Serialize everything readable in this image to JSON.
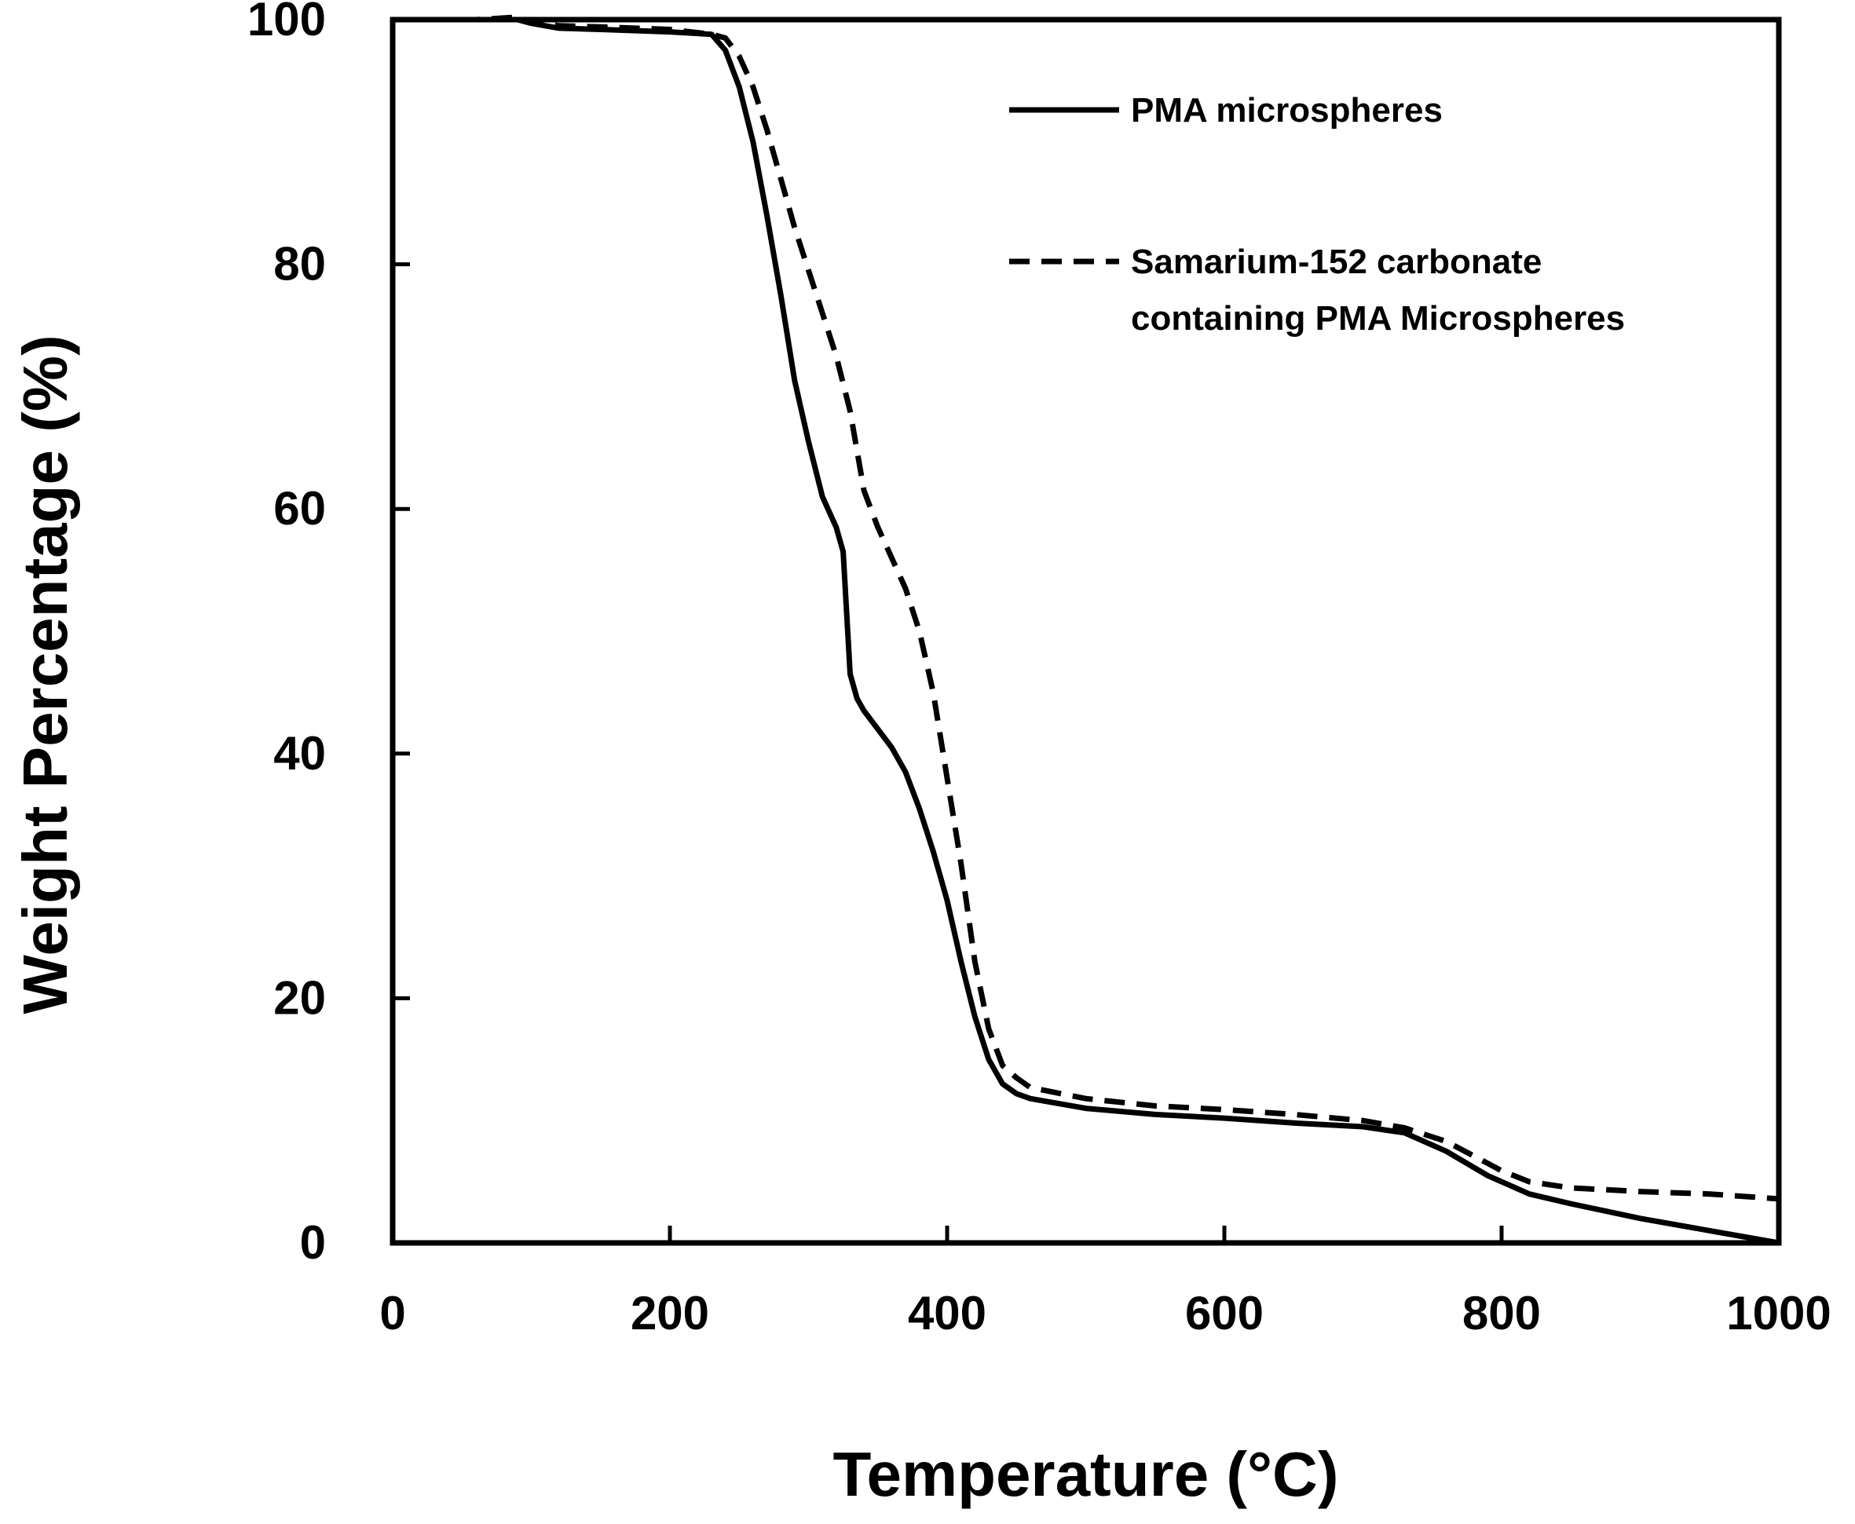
{
  "chart_data": {
    "type": "line",
    "title": "",
    "xlabel": "Temperature (°C)",
    "ylabel": "Weight Percentage (%)",
    "xlim": [
      0,
      1000
    ],
    "ylim": [
      0,
      100
    ],
    "xticks": [
      0,
      200,
      400,
      600,
      800,
      1000
    ],
    "yticks": [
      0,
      20,
      40,
      60,
      80,
      100
    ],
    "grid": false,
    "legend_position": "top-right",
    "series": [
      {
        "name": "PMA microspheres",
        "style": "solid",
        "color": "#000000",
        "x": [
          25,
          60,
          90,
          100,
          120,
          150,
          200,
          230,
          240,
          250,
          260,
          270,
          280,
          290,
          300,
          310,
          320,
          325,
          330,
          335,
          340,
          350,
          360,
          370,
          380,
          390,
          400,
          410,
          420,
          430,
          440,
          450,
          460,
          500,
          550,
          600,
          650,
          700,
          730,
          760,
          790,
          800,
          820,
          850,
          900,
          950,
          1000
        ],
        "y": [
          100,
          100,
          100,
          99.7,
          99.3,
          99.2,
          99.0,
          98.8,
          97.5,
          94.5,
          90.0,
          84.0,
          77.5,
          70.5,
          65.5,
          61.0,
          58.5,
          56.5,
          46.5,
          44.5,
          43.5,
          42.0,
          40.5,
          38.5,
          35.5,
          32.0,
          28.0,
          23.0,
          18.5,
          15.0,
          13.0,
          12.2,
          11.8,
          11.0,
          10.5,
          10.2,
          9.8,
          9.5,
          9.0,
          7.5,
          5.5,
          5.0,
          4.0,
          3.2,
          2.0,
          1.0,
          0
        ]
      },
      {
        "name": "Samarium-152 carbonate containing PMA Microspheres",
        "style": "dashed",
        "color": "#000000",
        "x": [
          25,
          60,
          90,
          100,
          120,
          150,
          200,
          230,
          240,
          250,
          260,
          270,
          280,
          290,
          300,
          310,
          320,
          330,
          340,
          350,
          360,
          370,
          380,
          390,
          400,
          410,
          420,
          430,
          440,
          450,
          460,
          500,
          550,
          600,
          650,
          700,
          730,
          760,
          790,
          800,
          820,
          850,
          900,
          950,
          1000
        ],
        "y": [
          100,
          100,
          100.2,
          99.8,
          99.5,
          99.4,
          99.2,
          98.8,
          98.5,
          97.0,
          94.5,
          91.0,
          87.0,
          83.0,
          79.5,
          76.0,
          72.5,
          68.0,
          61.5,
          58.5,
          56.0,
          53.5,
          50.0,
          45.0,
          38.0,
          31.0,
          23.0,
          17.5,
          14.5,
          13.5,
          12.7,
          11.8,
          11.2,
          10.9,
          10.5,
          10.0,
          9.4,
          8.3,
          6.5,
          5.9,
          5.0,
          4.5,
          4.2,
          4.0,
          3.6
        ]
      }
    ]
  }
}
